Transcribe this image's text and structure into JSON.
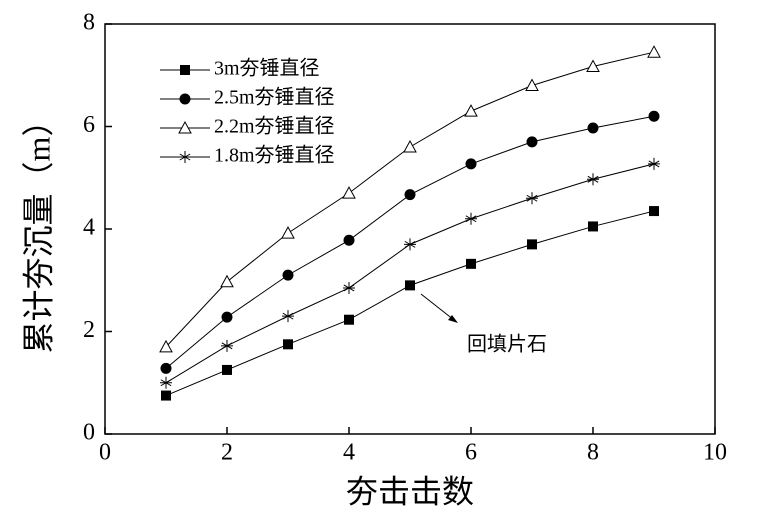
{
  "chart_data": {
    "type": "line",
    "x_label": "夯击击数",
    "y_label": "累计夯沉量（m）",
    "x": [
      1,
      2,
      3,
      4,
      5,
      6,
      7,
      8,
      9
    ],
    "series": [
      {
        "name": "3m夯锤直径",
        "color": "#000000",
        "marker": "square",
        "values": [
          0.75,
          1.25,
          1.75,
          2.23,
          2.9,
          3.32,
          3.7,
          4.05,
          4.35
        ]
      },
      {
        "name": "2.5m夯锤直径",
        "color": "#000000",
        "marker": "circle",
        "values": [
          1.28,
          2.28,
          3.1,
          3.78,
          4.67,
          5.27,
          5.7,
          5.97,
          6.2
        ]
      },
      {
        "name": "2.2m夯锤直径",
        "color": "#000000",
        "marker": "triangle-open",
        "values": [
          1.7,
          2.97,
          3.92,
          4.7,
          5.6,
          6.3,
          6.8,
          7.17,
          7.45
        ]
      },
      {
        "name": "1.8m夯锤直径",
        "color": "#000000",
        "marker": "asterisk",
        "values": [
          1.0,
          1.72,
          2.3,
          2.85,
          3.7,
          4.2,
          4.6,
          4.97,
          5.27
        ]
      }
    ],
    "annotation": "回填片石",
    "xlim": [
      0,
      10
    ],
    "xticks": [
      0,
      2,
      4,
      6,
      8,
      10
    ],
    "ylim": [
      0,
      8
    ],
    "yticks": [
      0,
      2,
      4,
      6,
      8
    ],
    "legend": "upper-left"
  }
}
